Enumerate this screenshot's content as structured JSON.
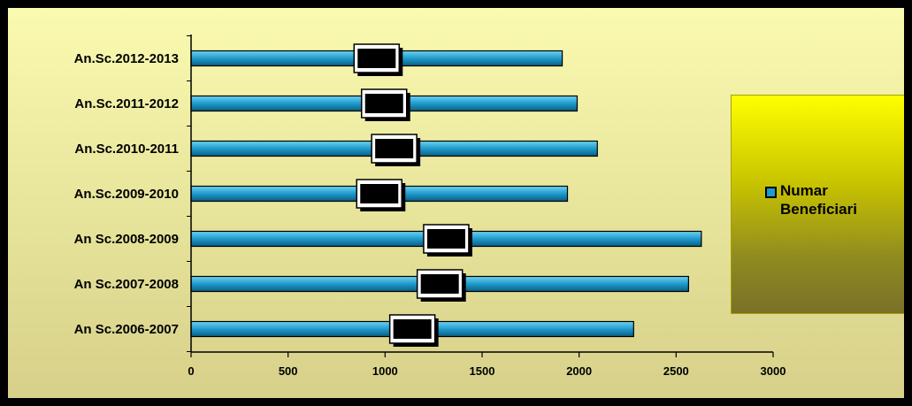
{
  "chart_data": {
    "type": "bar",
    "orientation": "horizontal",
    "categories": [
      "An.Sc.2012-2013",
      "An.Sc.2011-2012",
      "An.Sc.2010-2011",
      "An.Sc.2009-2010",
      "An Sc.2008-2009",
      "An Sc.2007-2008",
      "An Sc.2006-2007"
    ],
    "series": [
      {
        "name": "Numar Beneficiari",
        "values": [
          1913,
          1990,
          2094,
          1940,
          2630,
          2564,
          2281
        ]
      }
    ],
    "data_labels": [
      "1913",
      "1990",
      "2094",
      "1940",
      "2630",
      "2564",
      "2281"
    ],
    "xlim": [
      0,
      3000
    ],
    "xticks": [
      "0",
      "500",
      "1000",
      "1500",
      "2000",
      "2500",
      "3000"
    ],
    "grid": false,
    "legend_position": "right",
    "colors": {
      "bar": "#1f9acb",
      "bar_light": "#6fd3f2",
      "bar_dark": "#0a5d84",
      "legend_bg": "#ffff00",
      "plot_bg": "#f5f3a8"
    }
  }
}
